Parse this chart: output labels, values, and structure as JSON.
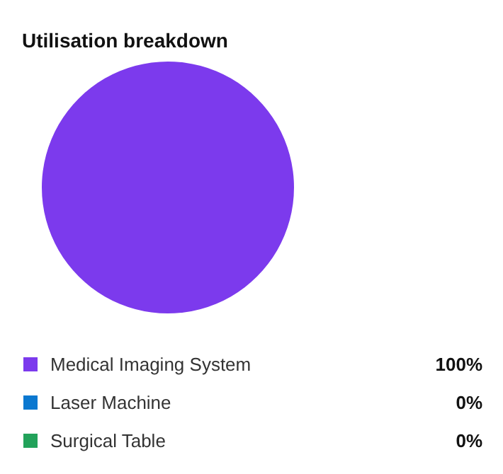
{
  "chart_data": {
    "type": "pie",
    "title": "Utilisation breakdown",
    "categories": [
      "Medical Imaging System",
      "Laser Machine",
      "Surgical Table"
    ],
    "values": [
      100,
      0,
      0
    ],
    "colors": [
      "#7c3aed",
      "#0b78d0",
      "#22a25a"
    ],
    "value_labels": [
      "100%",
      "0%",
      "0%"
    ],
    "legend": "bottom"
  }
}
